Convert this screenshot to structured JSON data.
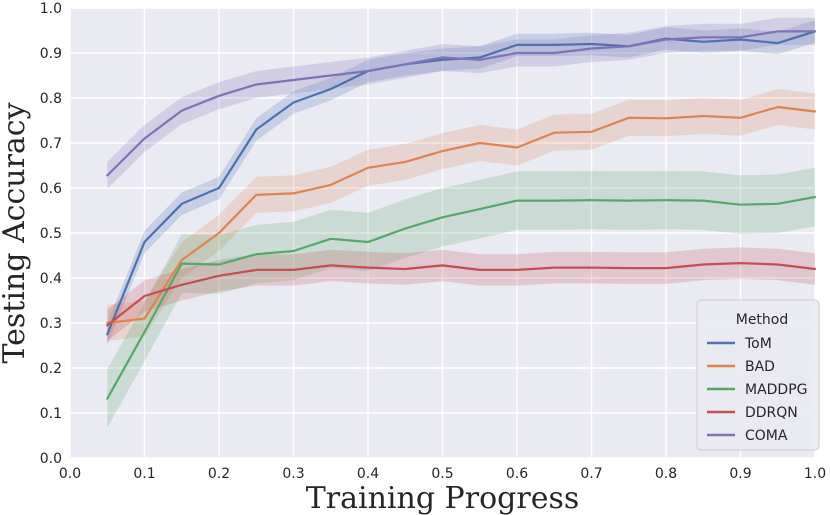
{
  "chart_data": {
    "type": "line",
    "title": "",
    "xlabel": "Training Progress",
    "ylabel": "Testing Accuracy",
    "xlim": [
      0.0,
      1.0
    ],
    "ylim": [
      0.0,
      1.0
    ],
    "grid": true,
    "x_ticks": [
      "0.0",
      "0.1",
      "0.2",
      "0.3",
      "0.4",
      "0.5",
      "0.6",
      "0.7",
      "0.8",
      "0.9",
      "1.0"
    ],
    "y_ticks": [
      "0.0",
      "0.1",
      "0.2",
      "0.3",
      "0.4",
      "0.5",
      "0.6",
      "0.7",
      "0.8",
      "0.9",
      "1.0"
    ],
    "legend": {
      "title": "Method",
      "placement": "lower-right"
    },
    "x": [
      0.05,
      0.1,
      0.15,
      0.2,
      0.25,
      0.3,
      0.35,
      0.4,
      0.45,
      0.5,
      0.55,
      0.6,
      0.65,
      0.7,
      0.75,
      0.8,
      0.85,
      0.9,
      0.95,
      1.0
    ],
    "series": [
      {
        "name": "ToM",
        "color": "#4c72b0",
        "values": [
          0.275,
          0.48,
          0.565,
          0.6,
          0.73,
          0.79,
          0.82,
          0.86,
          0.875,
          0.885,
          0.89,
          0.918,
          0.918,
          0.92,
          0.915,
          0.932,
          0.925,
          0.93,
          0.922,
          0.948
        ],
        "band": 0.025
      },
      {
        "name": "BAD",
        "color": "#dd8452",
        "values": [
          0.3,
          0.31,
          0.44,
          0.5,
          0.585,
          0.588,
          0.607,
          0.645,
          0.658,
          0.682,
          0.7,
          0.69,
          0.723,
          0.725,
          0.756,
          0.755,
          0.76,
          0.756,
          0.78,
          0.77
        ],
        "band": 0.04
      },
      {
        "name": "MADDPG",
        "color": "#55a868",
        "values": [
          0.132,
          0.28,
          0.432,
          0.43,
          0.453,
          0.46,
          0.487,
          0.48,
          0.51,
          0.535,
          0.553,
          0.572,
          0.572,
          0.573,
          0.572,
          0.573,
          0.572,
          0.563,
          0.565,
          0.58
        ],
        "band": 0.065
      },
      {
        "name": "DDRQN",
        "color": "#c44e52",
        "values": [
          0.295,
          0.36,
          0.385,
          0.405,
          0.418,
          0.418,
          0.428,
          0.423,
          0.42,
          0.428,
          0.418,
          0.418,
          0.423,
          0.423,
          0.422,
          0.422,
          0.43,
          0.433,
          0.43,
          0.42
        ],
        "band": 0.035
      },
      {
        "name": "COMA",
        "color": "#8172b3",
        "values": [
          0.628,
          0.71,
          0.772,
          0.805,
          0.83,
          0.84,
          0.85,
          0.86,
          0.875,
          0.89,
          0.885,
          0.9,
          0.9,
          0.91,
          0.915,
          0.93,
          0.935,
          0.935,
          0.948,
          0.948
        ],
        "band": 0.03
      }
    ]
  }
}
